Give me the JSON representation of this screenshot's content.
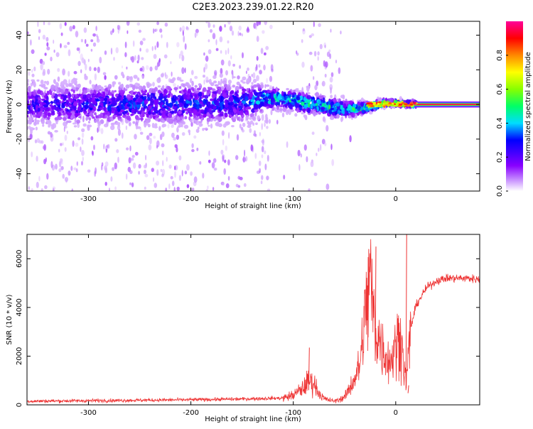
{
  "title": "C2E3.2023.239.01.22.R20",
  "colors": {
    "snr_line": "#ee3333",
    "spectrogram_cold": "#8800ff",
    "spectrogram_hot": "#ff0066",
    "axis": "#000000"
  },
  "chart_data": [
    {
      "type": "heatmap",
      "panel": "spectrogram",
      "xlabel": "Height of straight line (km)",
      "ylabel": "Frequency (Hz)",
      "xlim": [
        -360,
        82
      ],
      "ylim": [
        -50,
        48
      ],
      "xticks": [
        -300,
        -200,
        -100,
        0
      ],
      "yticks": [
        -40,
        -20,
        0,
        20,
        40
      ],
      "colorbar": {
        "label": "Normalized spectral amplitude",
        "range": [
          0,
          1
        ],
        "ticks": [
          0.0,
          0.2,
          0.4,
          0.6,
          0.8
        ],
        "colormap": "rainbow (purple-blue-cyan-green-yellow-orange-red-magenta)"
      },
      "description_points": [
        {
          "x": -350,
          "center_hz": 0,
          "spread_hz": 12,
          "peak_amp": 0.25
        },
        {
          "x": -250,
          "center_hz": 0,
          "spread_hz": 12,
          "peak_amp": 0.3
        },
        {
          "x": -150,
          "center_hz": 1,
          "spread_hz": 12,
          "peak_amp": 0.3
        },
        {
          "x": -118,
          "center_hz": 4,
          "spread_hz": 6,
          "peak_amp": 0.45
        },
        {
          "x": -80,
          "center_hz": 0,
          "spread_hz": 6,
          "peak_amp": 0.45
        },
        {
          "x": -50,
          "center_hz": -3,
          "spread_hz": 5,
          "peak_amp": 0.45
        },
        {
          "x": -30,
          "center_hz": -2,
          "spread_hz": 3,
          "peak_amp": 0.55
        },
        {
          "x": -10,
          "center_hz": 1,
          "spread_hz": 2,
          "peak_amp": 0.75
        },
        {
          "x": 20,
          "center_hz": 0,
          "spread_hz": 1.5,
          "peak_amp": 0.95
        },
        {
          "x": 82,
          "center_hz": 0,
          "spread_hz": 1.5,
          "peak_amp": 0.95
        }
      ]
    },
    {
      "type": "line",
      "panel": "snr",
      "xlabel": "Height of straight line (km)",
      "ylabel": "SNR (10 * v/v)",
      "xlim": [
        -360,
        82
      ],
      "ylim": [
        0,
        7000
      ],
      "xticks": [
        -300,
        -200,
        -100,
        0
      ],
      "yticks": [
        0,
        2000,
        4000,
        6000
      ],
      "series": [
        {
          "x": [
            -360,
            -300,
            -250,
            -200,
            -150,
            -110,
            -100,
            -90,
            -85,
            -80,
            -75,
            -70,
            -60,
            -50,
            -45,
            -40,
            -35,
            -30,
            -25,
            -20,
            -15,
            -10,
            -5,
            0,
            5,
            8,
            10,
            12,
            15,
            20,
            30,
            40,
            50,
            60,
            70,
            82
          ],
          "y": [
            150,
            170,
            190,
            210,
            240,
            280,
            400,
            700,
            1000,
            900,
            500,
            250,
            150,
            300,
            700,
            1100,
            1600,
            3600,
            5300,
            3000,
            2600,
            2000,
            1800,
            2400,
            3000,
            1500,
            1000,
            1800,
            3200,
            4100,
            4800,
            5100,
            5200,
            5200,
            5200,
            5150
          ],
          "spikes": [
            {
              "x": -85,
              "y": 2350
            },
            {
              "x": -27,
              "y": 6400
            },
            {
              "x": -20,
              "y": 6500
            },
            {
              "x": 10,
              "y": 7000
            },
            {
              "x": 12,
              "y": 800
            }
          ]
        }
      ]
    }
  ]
}
